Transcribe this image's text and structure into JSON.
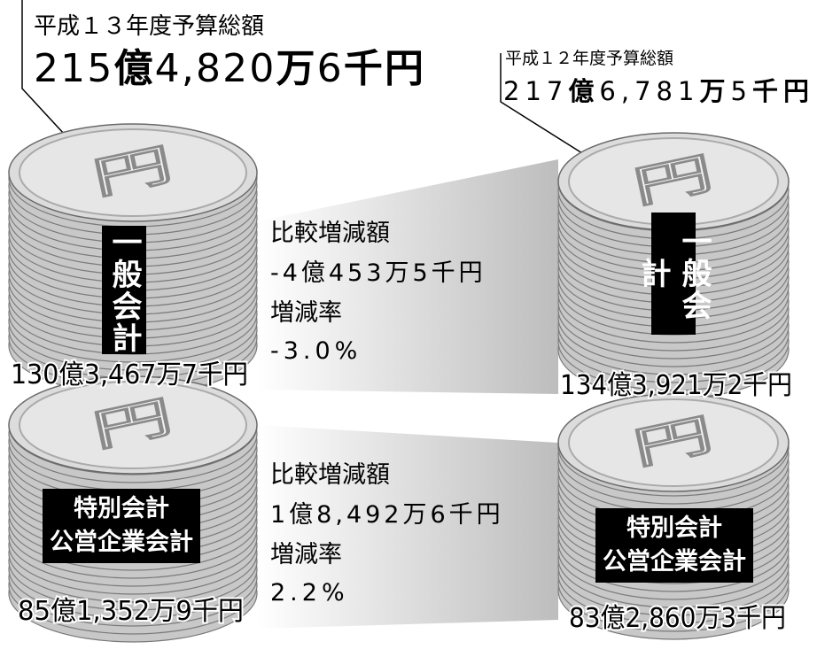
{
  "left": {
    "heading": "平成１３年度予算総額",
    "total": [
      "215",
      "億",
      "4,820",
      "万",
      "6",
      "千円"
    ],
    "general": {
      "label": "一般会計",
      "amount": "130億3,467万7千円"
    },
    "special": {
      "label": [
        "特別会計",
        "公営企業会計"
      ],
      "amount": "85億1,352万9千円"
    }
  },
  "right": {
    "heading": "平成１２年度予算総額",
    "total": [
      "217",
      "億",
      "6,781",
      "万",
      "5",
      "千円"
    ],
    "general": {
      "label": "一般会計",
      "amount": "134億3,921万2千円"
    },
    "special": {
      "label": [
        "特別会計",
        "公営企業会計"
      ],
      "amount": "83億2,860万3千円"
    }
  },
  "comparison": [
    {
      "diff_label": "比較増減額",
      "diff": "-4億453万5千円",
      "rate_label": "増減率",
      "rate": "-3.0%"
    },
    {
      "diff_label": "比較増減額",
      "diff": "1億8,492万6千円",
      "rate_label": "増減率",
      "rate": "2.2%"
    }
  ],
  "coin_symbol": "円"
}
